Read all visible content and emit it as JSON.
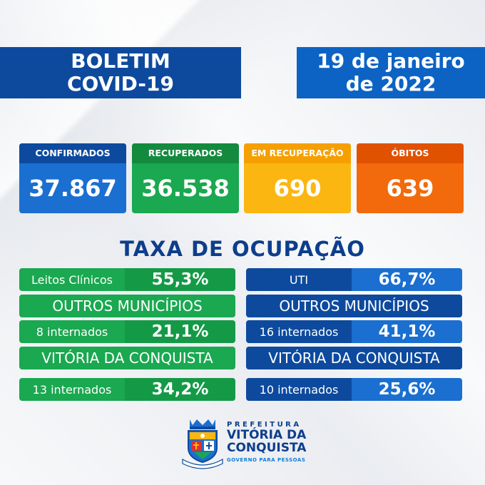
{
  "header": {
    "title_line1": "BOLETIM",
    "title_line2": "COVID-19",
    "date_line1": "19 de janeiro",
    "date_line2": "de 2022"
  },
  "stats": {
    "confirmed": {
      "label": "CONFIRMADOS",
      "value": "37.867"
    },
    "recovered": {
      "label": "RECUPERADOS",
      "value": "36.538"
    },
    "in_recovery": {
      "label": "EM RECUPERAÇÃO",
      "value": "690"
    },
    "deaths": {
      "label": "ÓBITOS",
      "value": "639"
    }
  },
  "occupancy": {
    "title": "TAXA DE OCUPAÇÃO",
    "clinical": {
      "label": "Leitos Clínicos",
      "value": "55,3%",
      "other_heading": "OUTROS MUNICÍPIOS",
      "other_label": "8 internados",
      "other_value": "21,1%",
      "city_heading": "VITÓRIA DA CONQUISTA",
      "city_label": "13 internados",
      "city_value": "34,2%"
    },
    "icu": {
      "label": "UTI",
      "value": "66,7%",
      "other_heading": "OUTROS MUNICÍPIOS",
      "other_label": "16 internados",
      "other_value": "41,1%",
      "city_heading": "VITÓRIA DA CONQUISTA",
      "city_label": "10 internados",
      "city_value": "25,6%"
    }
  },
  "logo": {
    "prefix": "PREFEITURA",
    "city_line1": "VITÓRIA DA",
    "city_line2": "CONQUISTA",
    "slogan": "GOVERNO PARA PESSOAS",
    "crest_icon": "city-crest-icon"
  },
  "colors": {
    "dark_blue": "#0d4a9e",
    "blue": "#1a6fd0",
    "green": "#1aa850",
    "yellow": "#fbb611",
    "orange": "#f26a0c"
  }
}
